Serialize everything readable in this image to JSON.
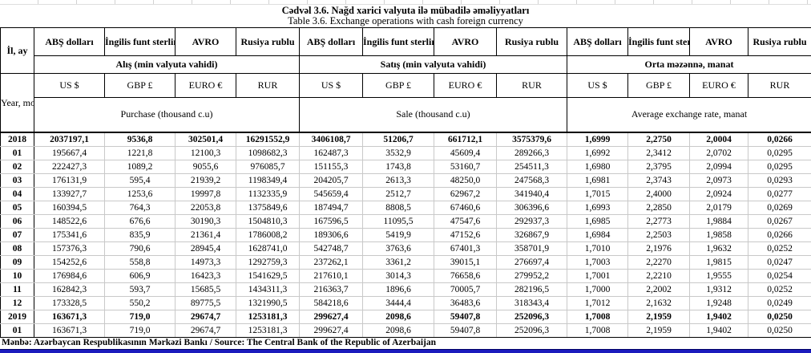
{
  "page": {
    "title_az": "Cədvəl 3.6. Nağd xarici valyuta ilə mübadilə əməliyyatları",
    "title_en": "Table 3.6. Exchange operations with cash foreign currency",
    "source_line": "Mənbə: Azərbaycan Respublikasının Mərkəzi Bankı / Source: The Central Bank of the Republic of Azerbaijan"
  },
  "colors": {
    "grid_light": "#c9c9c9",
    "grid_dark": "#000000",
    "bottom_bar_blue": "#1b1bbd"
  },
  "table": {
    "year_col_az": "İl, ay",
    "year_col_en": "Year, month",
    "currency_headers_az": [
      "ABŞ dolları",
      "İngilis funt sterlinqi",
      "AVRO",
      "Rusiya rublu"
    ],
    "currency_codes": [
      "US $",
      "GBP £",
      "EURO €",
      "RUR"
    ],
    "section_headers": [
      {
        "az": "Alış (min valyuta vahidi)",
        "en": "Purchase (thousand c.u)"
      },
      {
        "az": "Satış (min valyuta vahidi)",
        "en": "Sale (thousand c.u)"
      },
      {
        "az": "Orta məzənnə, manat",
        "en": "Average exchange rate, manat"
      }
    ],
    "rows": [
      {
        "label": "2018",
        "bold": true,
        "values": [
          "2037197,1",
          "9536,8",
          "302501,4",
          "16291552,9",
          "3406108,7",
          "51206,7",
          "661712,1",
          "3575379,6",
          "1,6999",
          "2,2750",
          "2,0004",
          "0,0266"
        ]
      },
      {
        "label": "01",
        "bold": false,
        "values": [
          "195667,4",
          "1221,8",
          "12100,3",
          "1098682,3",
          "162487,3",
          "3532,9",
          "45609,4",
          "289266,3",
          "1,6992",
          "2,3412",
          "2,0702",
          "0,0295"
        ]
      },
      {
        "label": "02",
        "bold": false,
        "values": [
          "222427,3",
          "1089,2",
          "9055,6",
          "976085,7",
          "151155,3",
          "1743,8",
          "53160,7",
          "254511,3",
          "1,6980",
          "2,3795",
          "2,0994",
          "0,0295"
        ]
      },
      {
        "label": "03",
        "bold": false,
        "values": [
          "176131,9",
          "595,4",
          "21939,2",
          "1198349,4",
          "204205,7",
          "2613,3",
          "48250,0",
          "247568,3",
          "1,6981",
          "2,3743",
          "2,0973",
          "0,0293"
        ]
      },
      {
        "label": "04",
        "bold": false,
        "values": [
          "133927,7",
          "1253,6",
          "19997,8",
          "1132335,9",
          "545659,4",
          "2512,7",
          "62967,2",
          "341940,4",
          "1,7015",
          "2,4000",
          "2,0924",
          "0,0277"
        ]
      },
      {
        "label": "05",
        "bold": false,
        "values": [
          "160394,5",
          "764,3",
          "22053,8",
          "1375849,6",
          "187494,7",
          "8808,5",
          "67460,6",
          "306396,6",
          "1,6993",
          "2,2850",
          "2,0179",
          "0,0269"
        ]
      },
      {
        "label": "06",
        "bold": false,
        "values": [
          "148522,6",
          "676,6",
          "30190,3",
          "1504810,3",
          "167596,5",
          "11095,5",
          "47547,6",
          "292937,3",
          "1,6985",
          "2,2773",
          "1,9884",
          "0,0267"
        ]
      },
      {
        "label": "07",
        "bold": false,
        "values": [
          "175341,6",
          "835,9",
          "21361,4",
          "1786008,2",
          "189306,6",
          "5419,9",
          "47152,6",
          "326867,9",
          "1,6984",
          "2,2503",
          "1,9858",
          "0,0266"
        ]
      },
      {
        "label": "08",
        "bold": false,
        "values": [
          "157376,3",
          "790,6",
          "28945,4",
          "1628741,0",
          "542748,7",
          "3763,6",
          "67401,3",
          "358701,9",
          "1,7010",
          "2,1976",
          "1,9632",
          "0,0252"
        ]
      },
      {
        "label": "09",
        "bold": false,
        "values": [
          "154252,6",
          "558,8",
          "14973,3",
          "1292759,3",
          "237262,1",
          "3361,2",
          "39015,1",
          "276697,4",
          "1,7003",
          "2,2270",
          "1,9815",
          "0,0247"
        ]
      },
      {
        "label": "10",
        "bold": false,
        "values": [
          "176984,6",
          "606,9",
          "16423,3",
          "1541629,5",
          "217610,1",
          "3014,3",
          "76658,6",
          "279952,2",
          "1,7001",
          "2,2210",
          "1,9555",
          "0,0254"
        ]
      },
      {
        "label": "11",
        "bold": false,
        "values": [
          "162842,3",
          "593,7",
          "15685,5",
          "1434311,3",
          "216363,7",
          "1896,6",
          "70005,7",
          "282196,5",
          "1,7000",
          "2,2002",
          "1,9312",
          "0,0252"
        ]
      },
      {
        "label": "12",
        "bold": false,
        "values": [
          "173328,5",
          "550,2",
          "89775,5",
          "1321990,5",
          "584218,6",
          "3444,4",
          "36483,6",
          "318343,4",
          "1,7012",
          "2,1632",
          "1,9248",
          "0,0249"
        ]
      },
      {
        "label": "2019",
        "bold": true,
        "values": [
          "163671,3",
          "719,0",
          "29674,7",
          "1253181,3",
          "299627,4",
          "2098,6",
          "59407,8",
          "252096,3",
          "1,7008",
          "2,1959",
          "1,9402",
          "0,0250"
        ]
      },
      {
        "label": "01",
        "bold": false,
        "values": [
          "163671,3",
          "719,0",
          "29674,7",
          "1253181,3",
          "299627,4",
          "2098,6",
          "59407,8",
          "252096,3",
          "1,7008",
          "2,1959",
          "1,9402",
          "0,0250"
        ]
      }
    ]
  }
}
